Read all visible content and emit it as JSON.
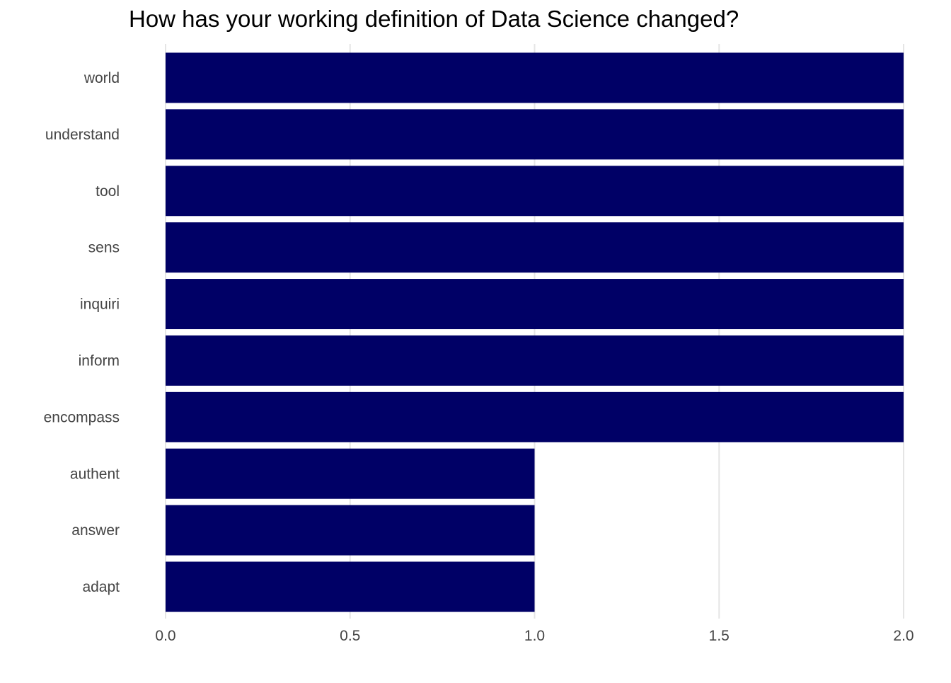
{
  "chart_data": {
    "type": "bar",
    "orientation": "horizontal",
    "title": "How has your working definition of Data Science changed?",
    "xlabel": "",
    "ylabel": "",
    "categories": [
      "world",
      "understand",
      "tool",
      "sens",
      "inquiri",
      "inform",
      "encompass",
      "authent",
      "answer",
      "adapt"
    ],
    "values": [
      2,
      2,
      2,
      2,
      2,
      2,
      2,
      1,
      1,
      1
    ],
    "xlim": [
      0,
      2
    ],
    "x_ticks": [
      "0.0",
      "0.5",
      "1.0",
      "1.5",
      "2.0"
    ],
    "grid": "vertical",
    "legend": "none",
    "colors": {
      "bar": "#000066",
      "grid": "#e5e5e5",
      "tick_label": "#444444",
      "title": "#000000"
    }
  }
}
